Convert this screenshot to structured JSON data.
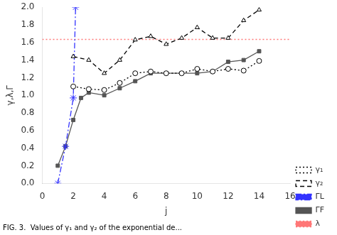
{
  "chart_data": {
    "type": "line",
    "caption": "FIG. 3.  Values of γ₁ and γ₂ of the exponential de...",
    "xlabel": "j",
    "ylabel": "γ,λ,Γ",
    "xlim": [
      0,
      16
    ],
    "ylim": [
      0.0,
      2.0
    ],
    "xticks": [
      0,
      2,
      4,
      6,
      8,
      10,
      12,
      14,
      16
    ],
    "yticks": [
      {
        "value": 0,
        "label": "0.0"
      },
      0.2,
      0.4,
      0.6,
      0.8,
      {
        "value": 1,
        "label": "1.0"
      },
      1.2,
      1.4,
      1.6,
      1.8,
      {
        "value": 2,
        "label": "2.0"
      }
    ],
    "grid": false,
    "legend": "lower right",
    "series": [
      {
        "name": "γ₁",
        "color": "#000000",
        "marker": "open_circle",
        "line_style": "dotted",
        "x": [
          2,
          3,
          4,
          5,
          6,
          7,
          8,
          9,
          10,
          11,
          12,
          13,
          14
        ],
        "values": [
          1.1,
          1.07,
          1.06,
          1.14,
          1.25,
          1.27,
          1.25,
          1.25,
          1.3,
          1.27,
          1.3,
          1.28,
          1.39
        ]
      },
      {
        "name": "γ₂",
        "color": "#000000",
        "marker": "open_triangle",
        "line_style": "dashed",
        "x": [
          2,
          3,
          4,
          5,
          6,
          7,
          8,
          9,
          10,
          11,
          12,
          13,
          14
        ],
        "values": [
          1.44,
          1.4,
          1.25,
          1.4,
          1.63,
          1.67,
          1.58,
          1.65,
          1.77,
          1.65,
          1.65,
          1.85,
          1.97
        ]
      },
      {
        "name": "λ",
        "color": "#ff7777",
        "type": "hline",
        "line_style": "dotted",
        "values": [
          1.635
        ]
      },
      {
        "name": "ΓL",
        "color": "#3333ff",
        "marker": "star",
        "line_style": "dashdot",
        "x": [
          1,
          1.5,
          2.0,
          2.15
        ],
        "values": [
          0.0,
          0.42,
          0.97,
          2.0
        ]
      },
      {
        "name": "ΓF",
        "color": "#555555",
        "marker": "square",
        "line_style": "solid",
        "x": [
          1,
          1.5,
          2,
          2.5,
          3,
          4,
          5,
          6,
          7,
          8,
          9,
          10,
          11,
          12,
          13,
          14
        ],
        "values": [
          0.2,
          0.42,
          0.72,
          0.97,
          1.03,
          1.0,
          1.08,
          1.16,
          1.25,
          1.25,
          1.25,
          1.25,
          1.27,
          1.38,
          1.4,
          1.5
        ]
      }
    ]
  }
}
